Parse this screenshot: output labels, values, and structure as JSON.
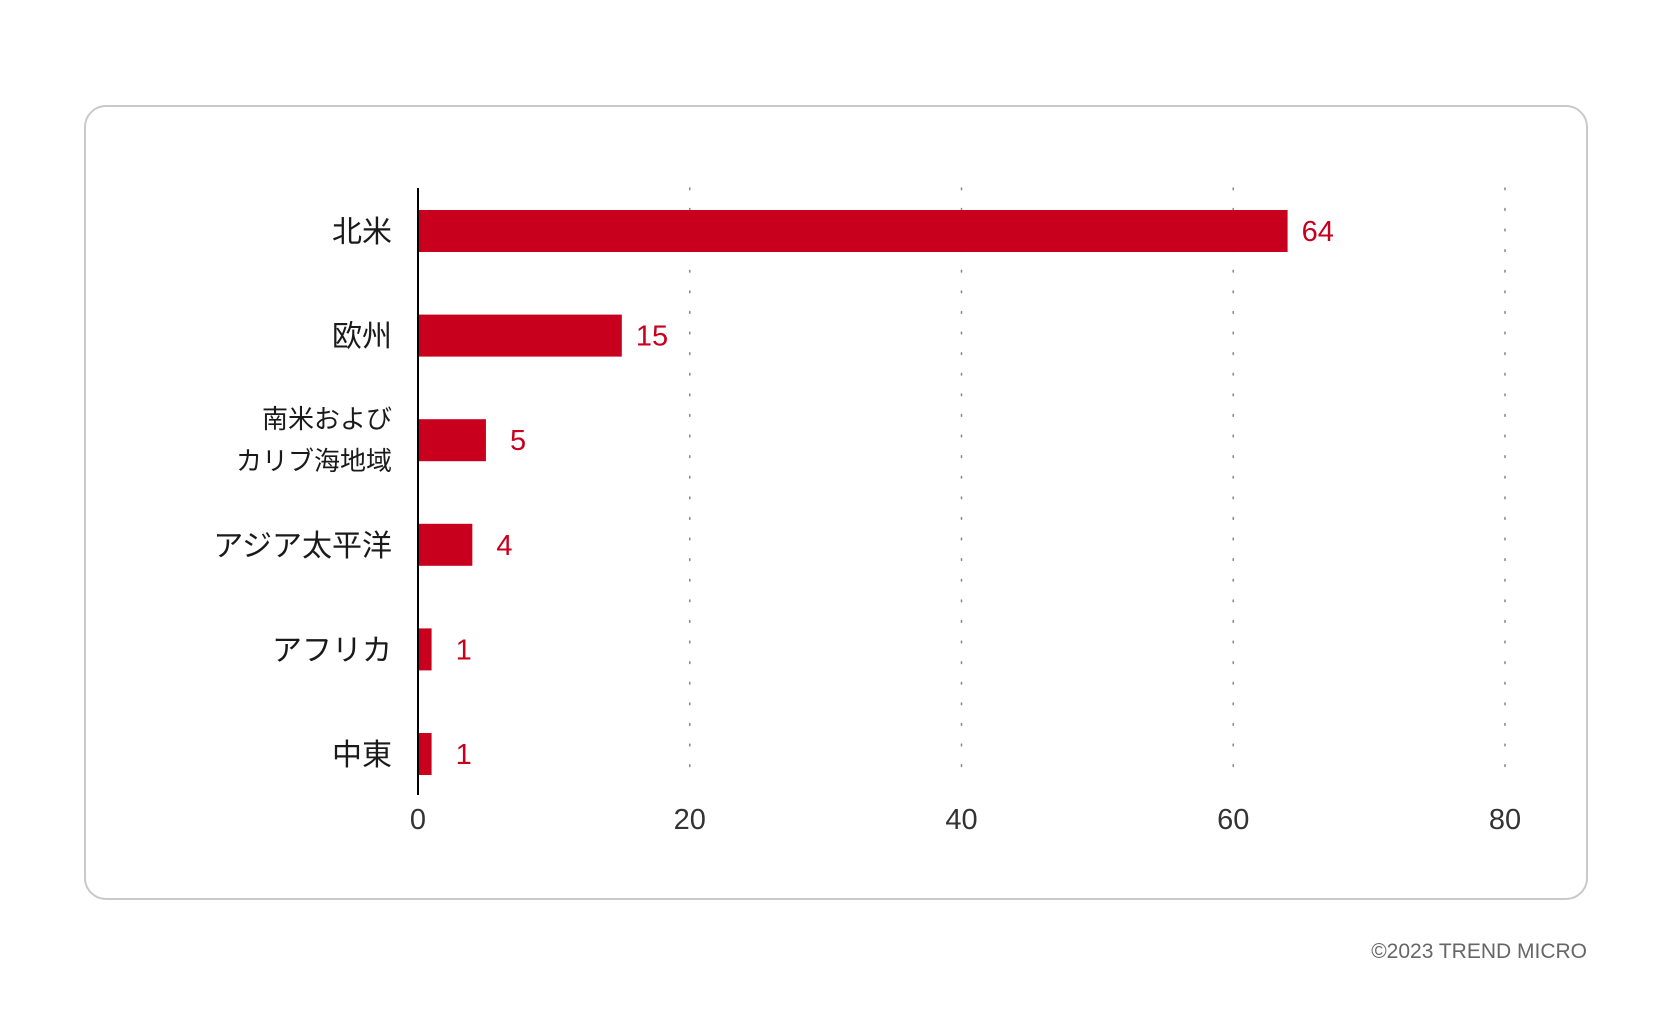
{
  "chart_data": {
    "type": "bar",
    "orientation": "horizontal",
    "categories": [
      [
        "北米"
      ],
      [
        "欧州"
      ],
      [
        "南米および",
        "カリブ海地域"
      ],
      [
        "アジア太平洋"
      ],
      [
        "アフリカ"
      ],
      [
        "中東"
      ]
    ],
    "values": [
      64,
      15,
      5,
      4,
      1,
      1
    ],
    "value_labels": [
      "64",
      "15",
      "5",
      "4",
      "1",
      "1"
    ],
    "xlim": [
      0,
      80
    ],
    "xticks": [
      0,
      20,
      40,
      60,
      80
    ],
    "xtick_labels": [
      "0",
      "20",
      "40",
      "60",
      "80"
    ],
    "grid": "vertical-dotted",
    "bar_color": "#c8001e",
    "value_label_color": "#c8001e"
  },
  "footer": {
    "copyright": "©2023 TREND MICRO"
  }
}
